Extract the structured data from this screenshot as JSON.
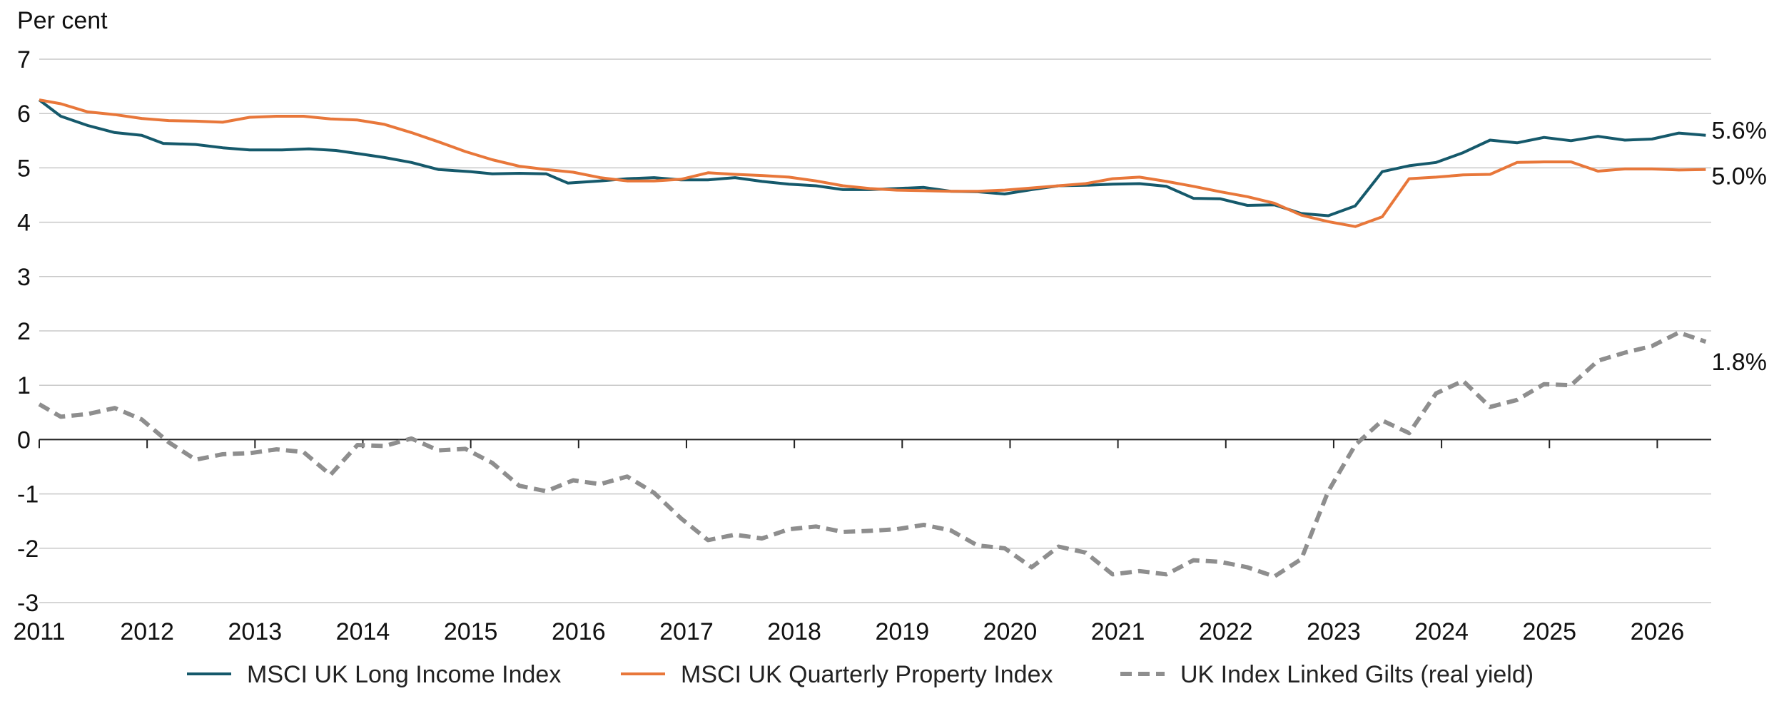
{
  "chart_data": {
    "type": "line",
    "title": "",
    "ylabel": "Per cent",
    "xlabel": "",
    "ylim": [
      -3,
      7
    ],
    "xlim": [
      2011,
      2026.5
    ],
    "yticks": [
      "7",
      "6",
      "5",
      "4",
      "3",
      "2",
      "1",
      "0",
      "-1",
      "-2",
      "-3"
    ],
    "xticks": [
      "2011",
      "2012",
      "2013",
      "2014",
      "2015",
      "2016",
      "2017",
      "2018",
      "2019",
      "2020",
      "2021",
      "2022",
      "2023",
      "2024",
      "2025",
      "2026"
    ],
    "grid": true,
    "legend_position": "bottom",
    "series": [
      {
        "name": "MSCI UK Long Income Index",
        "color": "#15596b",
        "style": "solid",
        "end_label": "5.6%",
        "x": [
          2011.0,
          2011.2,
          2011.45,
          2011.7,
          2011.95,
          2012.15,
          2012.45,
          2012.7,
          2012.95,
          2013.25,
          2013.5,
          2013.75,
          2014.0,
          2014.2,
          2014.45,
          2014.7,
          2015.0,
          2015.2,
          2015.45,
          2015.7,
          2015.9,
          2016.2,
          2016.45,
          2016.7,
          2016.95,
          2017.2,
          2017.45,
          2017.7,
          2017.95,
          2018.2,
          2018.45,
          2018.7,
          2018.95,
          2019.2,
          2019.45,
          2019.7,
          2019.95,
          2020.2,
          2020.45,
          2020.7,
          2020.95,
          2021.2,
          2021.45,
          2021.7,
          2021.95,
          2022.2,
          2022.45,
          2022.7,
          2022.95,
          2023.2,
          2023.45,
          2023.7,
          2023.95,
          2024.2,
          2024.45,
          2024.7,
          2024.95,
          2025.2,
          2025.45,
          2025.7,
          2025.95,
          2026.2,
          2026.45
        ],
        "y": [
          6.25,
          5.95,
          5.78,
          5.65,
          5.6,
          5.45,
          5.43,
          5.37,
          5.33,
          5.33,
          5.35,
          5.32,
          5.25,
          5.19,
          5.1,
          4.97,
          4.93,
          4.89,
          4.9,
          4.89,
          4.72,
          4.76,
          4.8,
          4.82,
          4.78,
          4.78,
          4.82,
          4.75,
          4.7,
          4.67,
          4.6,
          4.6,
          4.62,
          4.64,
          4.57,
          4.56,
          4.52,
          4.6,
          4.67,
          4.68,
          4.7,
          4.71,
          4.66,
          4.44,
          4.43,
          4.31,
          4.32,
          4.16,
          4.12,
          4.3,
          4.93,
          5.04,
          5.1,
          5.28,
          5.51,
          5.46,
          5.56,
          5.5,
          5.58,
          5.51,
          5.53,
          5.64,
          5.6
        ]
      },
      {
        "name": "MSCI UK Quarterly Property Index",
        "color": "#e8773a",
        "style": "solid",
        "end_label": "5.0%",
        "x": [
          2011.0,
          2011.2,
          2011.45,
          2011.7,
          2011.95,
          2012.2,
          2012.45,
          2012.7,
          2012.95,
          2013.2,
          2013.45,
          2013.7,
          2013.95,
          2014.2,
          2014.45,
          2014.7,
          2014.95,
          2015.2,
          2015.45,
          2015.7,
          2015.95,
          2016.2,
          2016.45,
          2016.7,
          2016.95,
          2017.2,
          2017.45,
          2017.7,
          2017.95,
          2018.2,
          2018.45,
          2018.7,
          2018.95,
          2019.2,
          2019.45,
          2019.7,
          2019.95,
          2020.2,
          2020.45,
          2020.7,
          2020.95,
          2021.2,
          2021.45,
          2021.7,
          2021.95,
          2022.2,
          2022.45,
          2022.7,
          2022.95,
          2023.2,
          2023.45,
          2023.7,
          2023.95,
          2024.2,
          2024.45,
          2024.7,
          2024.95,
          2025.2,
          2025.45,
          2025.7,
          2025.95,
          2026.2,
          2026.45
        ],
        "y": [
          6.25,
          6.18,
          6.03,
          5.98,
          5.91,
          5.87,
          5.86,
          5.84,
          5.93,
          5.95,
          5.95,
          5.9,
          5.88,
          5.8,
          5.65,
          5.48,
          5.3,
          5.15,
          5.03,
          4.97,
          4.92,
          4.82,
          4.76,
          4.76,
          4.79,
          4.91,
          4.88,
          4.86,
          4.83,
          4.76,
          4.67,
          4.62,
          4.59,
          4.58,
          4.57,
          4.57,
          4.59,
          4.63,
          4.67,
          4.71,
          4.8,
          4.83,
          4.75,
          4.66,
          4.56,
          4.47,
          4.35,
          4.13,
          4.01,
          3.92,
          4.1,
          4.8,
          4.83,
          4.87,
          4.88,
          5.1,
          5.11,
          5.11,
          4.94,
          4.98,
          4.98,
          4.96,
          4.97
        ]
      },
      {
        "name": "UK Index Linked Gilts (real yield)",
        "color": "#8e8e8e",
        "style": "dashed",
        "end_label": "1.8%",
        "x": [
          2011.0,
          2011.2,
          2011.45,
          2011.7,
          2011.95,
          2012.2,
          2012.45,
          2012.7,
          2012.95,
          2013.2,
          2013.45,
          2013.7,
          2013.95,
          2014.2,
          2014.45,
          2014.7,
          2014.95,
          2015.2,
          2015.45,
          2015.7,
          2015.95,
          2016.2,
          2016.45,
          2016.7,
          2016.95,
          2017.2,
          2017.45,
          2017.7,
          2017.95,
          2018.2,
          2018.45,
          2018.7,
          2018.95,
          2019.2,
          2019.45,
          2019.7,
          2019.95,
          2020.2,
          2020.45,
          2020.7,
          2020.95,
          2021.2,
          2021.45,
          2021.7,
          2021.95,
          2022.2,
          2022.45,
          2022.7,
          2022.95,
          2023.2,
          2023.45,
          2023.7,
          2023.95,
          2024.2,
          2024.45,
          2024.7,
          2024.95,
          2025.2,
          2025.45,
          2025.7,
          2025.95,
          2026.2,
          2026.45
        ],
        "y": [
          0.65,
          0.42,
          0.47,
          0.58,
          0.37,
          -0.05,
          -0.37,
          -0.27,
          -0.25,
          -0.18,
          -0.23,
          -0.65,
          -0.1,
          -0.12,
          0.02,
          -0.2,
          -0.17,
          -0.43,
          -0.85,
          -0.95,
          -0.75,
          -0.82,
          -0.68,
          -0.98,
          -1.45,
          -1.85,
          -1.75,
          -1.82,
          -1.65,
          -1.6,
          -1.7,
          -1.68,
          -1.65,
          -1.57,
          -1.67,
          -1.95,
          -2.0,
          -2.35,
          -1.97,
          -2.08,
          -2.48,
          -2.42,
          -2.48,
          -2.22,
          -2.25,
          -2.35,
          -2.52,
          -2.2,
          -0.95,
          -0.1,
          0.35,
          0.12,
          0.85,
          1.08,
          0.6,
          0.73,
          1.02,
          1.0,
          1.45,
          1.6,
          1.72,
          1.97,
          1.8
        ]
      }
    ]
  }
}
